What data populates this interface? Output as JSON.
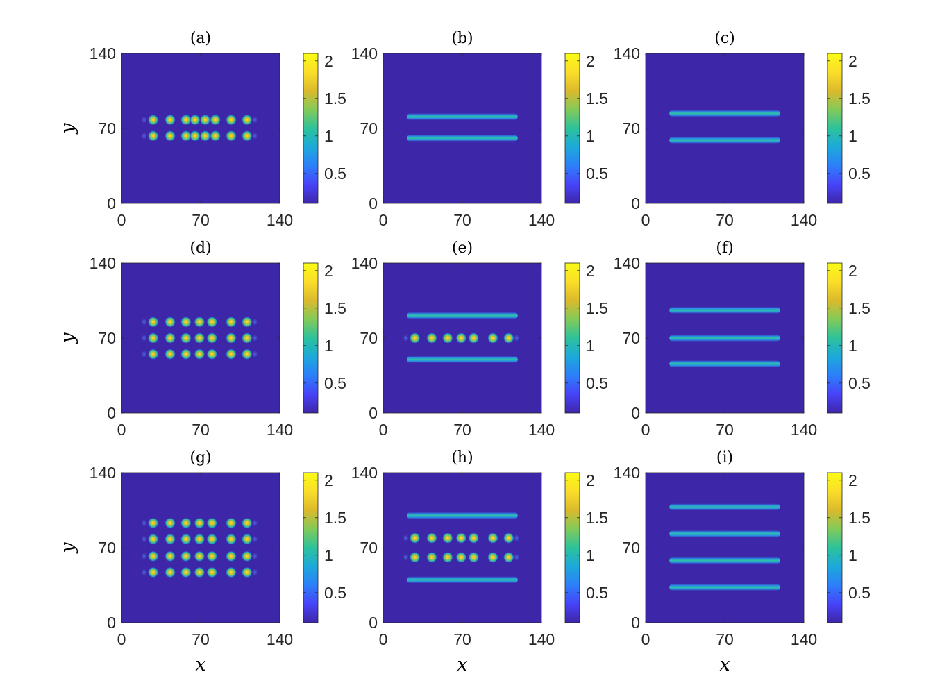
{
  "figure": {
    "colormap": [
      "#3e26a8",
      "#4743f8",
      "#2c7ff9",
      "#1ca9da",
      "#2dc29b",
      "#82ca59",
      "#dbba2c",
      "#fbde2a",
      "#f9fb15"
    ],
    "background_color": "#3e26a8",
    "xlabel": "x",
    "ylabel": "y"
  },
  "chart_data": [
    {
      "panel": "(a)",
      "type": "heatmap",
      "xlim": [
        0,
        140
      ],
      "ylim": [
        0,
        140
      ],
      "xticks": [
        "0",
        "70",
        "140"
      ],
      "yticks": [
        "0",
        "70",
        "140"
      ],
      "colorbar_range": [
        0.1,
        2.1
      ],
      "colorbar_ticks": [
        "0.5",
        "1",
        "1.5",
        "2"
      ],
      "stripes": [],
      "spot_rows": [
        {
          "y": 63,
          "x": [
            28,
            43,
            57,
            65,
            74,
            83,
            97,
            111
          ]
        },
        {
          "y": 78,
          "x": [
            28,
            43,
            57,
            65,
            74,
            83,
            97,
            111
          ]
        }
      ],
      "faint_edges": [
        {
          "y": 63,
          "x": [
            20,
            118
          ]
        },
        {
          "y": 78,
          "x": [
            20,
            118
          ]
        }
      ]
    },
    {
      "panel": "(b)",
      "type": "heatmap",
      "xlim": [
        0,
        140
      ],
      "ylim": [
        0,
        140
      ],
      "xticks": [
        "0",
        "70",
        "140"
      ],
      "yticks": [
        "0",
        "70",
        "140"
      ],
      "colorbar_range": [
        0.1,
        2.1
      ],
      "colorbar_ticks": [
        "0.5",
        "1",
        "1.5",
        "2"
      ],
      "stripes": [
        {
          "y": 61,
          "x": [
            21,
            119
          ]
        },
        {
          "y": 81,
          "x": [
            21,
            119
          ]
        }
      ],
      "spot_rows": [],
      "faint_edges": []
    },
    {
      "panel": "(c)",
      "type": "heatmap",
      "xlim": [
        0,
        140
      ],
      "ylim": [
        0,
        140
      ],
      "xticks": [
        "0",
        "70",
        "140"
      ],
      "yticks": [
        "0",
        "70",
        "140"
      ],
      "colorbar_range": [
        0.1,
        2.1
      ],
      "colorbar_ticks": [
        "0.5",
        "1",
        "1.5",
        "2"
      ],
      "stripes": [
        {
          "y": 59,
          "x": [
            21,
            119
          ]
        },
        {
          "y": 84,
          "x": [
            21,
            119
          ]
        }
      ],
      "spot_rows": [],
      "faint_edges": []
    },
    {
      "panel": "(d)",
      "type": "heatmap",
      "xlim": [
        0,
        140
      ],
      "ylim": [
        0,
        140
      ],
      "xticks": [
        "0",
        "70",
        "140"
      ],
      "yticks": [
        "0",
        "70",
        "140"
      ],
      "colorbar_range": [
        0.1,
        2.1
      ],
      "colorbar_ticks": [
        "0.5",
        "1",
        "1.5",
        "2"
      ],
      "stripes": [],
      "spot_rows": [
        {
          "y": 55,
          "x": [
            28,
            43,
            57,
            69,
            80,
            97,
            111
          ]
        },
        {
          "y": 70,
          "x": [
            28,
            43,
            57,
            69,
            80,
            97,
            111
          ]
        },
        {
          "y": 85,
          "x": [
            28,
            43,
            57,
            69,
            80,
            97,
            111
          ]
        }
      ],
      "faint_edges": [
        {
          "y": 55,
          "x": [
            20,
            118
          ]
        },
        {
          "y": 70,
          "x": [
            20,
            118
          ]
        },
        {
          "y": 85,
          "x": [
            20,
            118
          ]
        }
      ]
    },
    {
      "panel": "(e)",
      "type": "heatmap",
      "xlim": [
        0,
        140
      ],
      "ylim": [
        0,
        140
      ],
      "xticks": [
        "0",
        "70",
        "140"
      ],
      "yticks": [
        "0",
        "70",
        "140"
      ],
      "colorbar_range": [
        0.1,
        2.1
      ],
      "colorbar_ticks": [
        "0.5",
        "1",
        "1.5",
        "2"
      ],
      "stripes": [
        {
          "y": 50,
          "x": [
            21,
            119
          ]
        },
        {
          "y": 91,
          "x": [
            21,
            119
          ]
        }
      ],
      "spot_rows": [
        {
          "y": 70,
          "x": [
            28,
            43,
            57,
            69,
            80,
            97,
            111
          ]
        }
      ],
      "faint_edges": [
        {
          "y": 70,
          "x": [
            20,
            118
          ]
        }
      ]
    },
    {
      "panel": "(f)",
      "type": "heatmap",
      "xlim": [
        0,
        140
      ],
      "ylim": [
        0,
        140
      ],
      "xticks": [
        "0",
        "70",
        "140"
      ],
      "yticks": [
        "0",
        "70",
        "140"
      ],
      "colorbar_range": [
        0.1,
        2.1
      ],
      "colorbar_ticks": [
        "0.5",
        "1",
        "1.5",
        "2"
      ],
      "stripes": [
        {
          "y": 46,
          "x": [
            21,
            119
          ]
        },
        {
          "y": 70,
          "x": [
            21,
            119
          ]
        },
        {
          "y": 96,
          "x": [
            21,
            119
          ]
        }
      ],
      "spot_rows": [],
      "faint_edges": []
    },
    {
      "panel": "(g)",
      "type": "heatmap",
      "xlim": [
        0,
        140
      ],
      "ylim": [
        0,
        140
      ],
      "xticks": [
        "0",
        "70",
        "140"
      ],
      "yticks": [
        "0",
        "70",
        "140"
      ],
      "colorbar_range": [
        0.1,
        2.1
      ],
      "colorbar_ticks": [
        "0.5",
        "1",
        "1.5",
        "2"
      ],
      "stripes": [],
      "spot_rows": [
        {
          "y": 47,
          "x": [
            28,
            43,
            57,
            69,
            80,
            97,
            111
          ]
        },
        {
          "y": 62,
          "x": [
            28,
            43,
            57,
            69,
            80,
            97,
            111
          ]
        },
        {
          "y": 78,
          "x": [
            28,
            43,
            57,
            69,
            80,
            97,
            111
          ]
        },
        {
          "y": 93,
          "x": [
            28,
            43,
            57,
            69,
            80,
            97,
            111
          ]
        }
      ],
      "faint_edges": [
        {
          "y": 47,
          "x": [
            20,
            118
          ]
        },
        {
          "y": 62,
          "x": [
            20,
            118
          ]
        },
        {
          "y": 78,
          "x": [
            20,
            118
          ]
        },
        {
          "y": 93,
          "x": [
            20,
            118
          ]
        }
      ]
    },
    {
      "panel": "(h)",
      "type": "heatmap",
      "xlim": [
        0,
        140
      ],
      "ylim": [
        0,
        140
      ],
      "xticks": [
        "0",
        "70",
        "140"
      ],
      "yticks": [
        "0",
        "70",
        "140"
      ],
      "colorbar_range": [
        0.1,
        2.1
      ],
      "colorbar_ticks": [
        "0.5",
        "1",
        "1.5",
        "2"
      ],
      "stripes": [
        {
          "y": 40,
          "x": [
            21,
            119
          ]
        },
        {
          "y": 100,
          "x": [
            21,
            119
          ]
        }
      ],
      "spot_rows": [
        {
          "y": 61,
          "x": [
            28,
            43,
            57,
            69,
            80,
            97,
            111
          ]
        },
        {
          "y": 79,
          "x": [
            28,
            43,
            57,
            69,
            80,
            97,
            111
          ]
        }
      ],
      "faint_edges": [
        {
          "y": 61,
          "x": [
            20,
            118
          ]
        },
        {
          "y": 79,
          "x": [
            20,
            118
          ]
        }
      ]
    },
    {
      "panel": "(i)",
      "type": "heatmap",
      "xlim": [
        0,
        140
      ],
      "ylim": [
        0,
        140
      ],
      "xticks": [
        "0",
        "70",
        "140"
      ],
      "yticks": [
        "0",
        "70",
        "140"
      ],
      "colorbar_range": [
        0.1,
        2.1
      ],
      "colorbar_ticks": [
        "0.5",
        "1",
        "1.5",
        "2"
      ],
      "stripes": [
        {
          "y": 33,
          "x": [
            21,
            119
          ]
        },
        {
          "y": 58,
          "x": [
            21,
            119
          ]
        },
        {
          "y": 83,
          "x": [
            21,
            119
          ]
        },
        {
          "y": 108,
          "x": [
            21,
            119
          ]
        }
      ],
      "spot_rows": [],
      "faint_edges": []
    }
  ]
}
